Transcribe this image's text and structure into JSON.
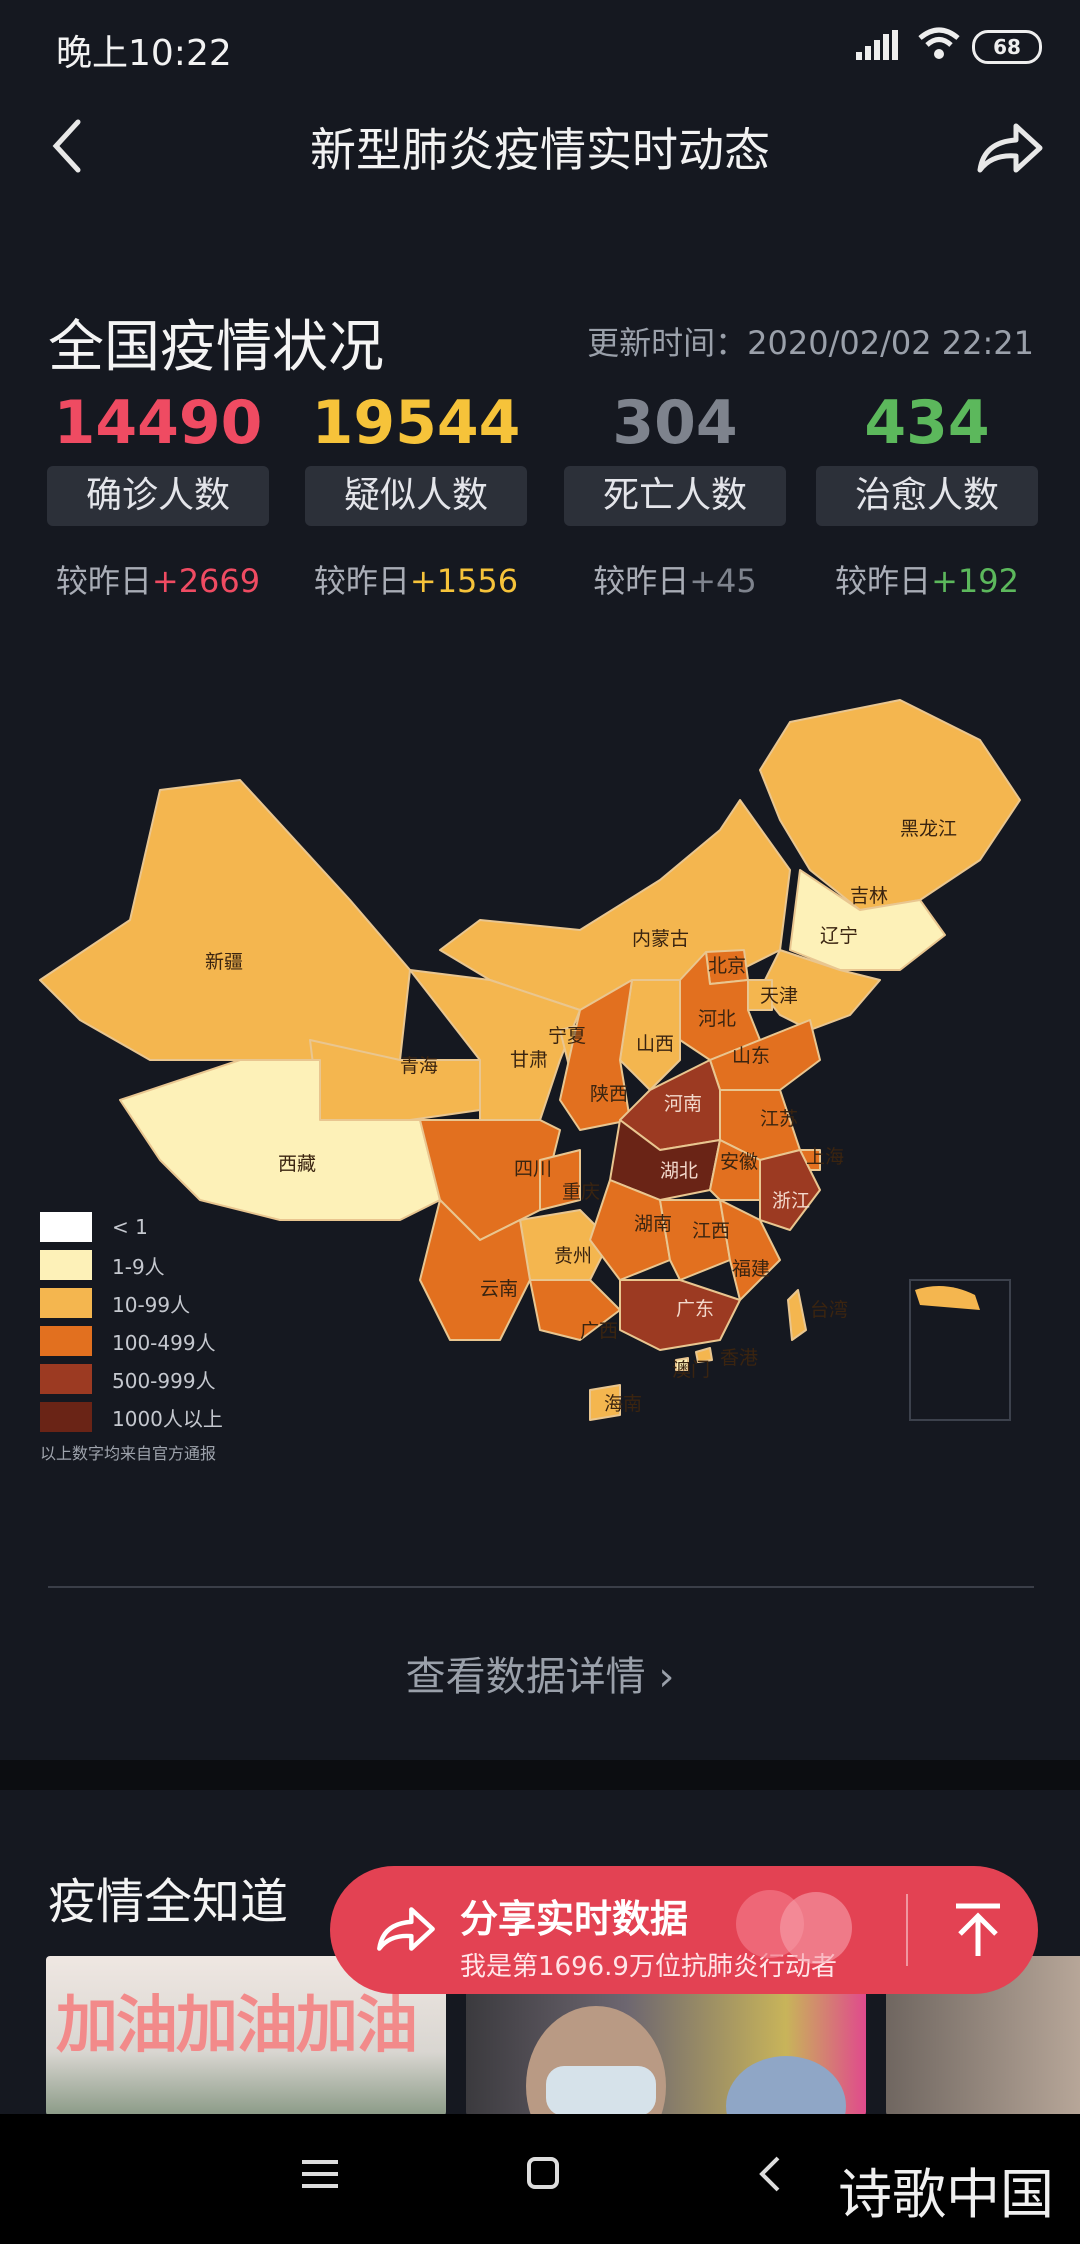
{
  "status_bar": {
    "time": "晚上10:22",
    "battery": "68"
  },
  "nav": {
    "title": "新型肺炎疫情实时动态"
  },
  "section": {
    "title": "全国疫情状况",
    "update_time": "更新时间：2020/02/02 22:21"
  },
  "stats": [
    {
      "number": "14490",
      "label": "确诊人数",
      "delta_prefix": "较昨日",
      "delta": "+2669",
      "color": "#ef4b62"
    },
    {
      "number": "19544",
      "label": "疑似人数",
      "delta_prefix": "较昨日",
      "delta": "+1556",
      "color": "#f6c33a"
    },
    {
      "number": "304",
      "label": "死亡人数",
      "delta_prefix": "较昨日",
      "delta": "+45",
      "color": "#7e838d"
    },
    {
      "number": "434",
      "label": "治愈人数",
      "delta_prefix": "较昨日",
      "delta": "+192",
      "color": "#5cb85c"
    }
  ],
  "map": {
    "provinces": [
      {
        "name": "黑龙江",
        "level": "10-99人"
      },
      {
        "name": "吉林",
        "level": "1-9人"
      },
      {
        "name": "辽宁",
        "level": "10-99人"
      },
      {
        "name": "内蒙古",
        "level": "10-99人"
      },
      {
        "name": "北京",
        "level": "100-499人"
      },
      {
        "name": "天津",
        "level": "10-99人"
      },
      {
        "name": "河北",
        "level": "100-499人"
      },
      {
        "name": "山西",
        "level": "10-99人"
      },
      {
        "name": "山东",
        "level": "100-499人"
      },
      {
        "name": "新疆",
        "level": "10-99人"
      },
      {
        "name": "青海",
        "level": "10-99人"
      },
      {
        "name": "甘肃",
        "level": "10-99人"
      },
      {
        "name": "宁夏",
        "level": "10-99人"
      },
      {
        "name": "陕西",
        "level": "100-499人"
      },
      {
        "name": "河南",
        "level": "500-999人"
      },
      {
        "name": "江苏",
        "level": "100-499人"
      },
      {
        "name": "上海",
        "level": "100-499人"
      },
      {
        "name": "西藏",
        "level": "1-9人"
      },
      {
        "name": "四川",
        "level": "100-499人"
      },
      {
        "name": "重庆",
        "level": "100-499人"
      },
      {
        "name": "湖北",
        "level": "1000人以上"
      },
      {
        "name": "安徽",
        "level": "100-499人"
      },
      {
        "name": "浙江",
        "level": "500-999人"
      },
      {
        "name": "贵州",
        "level": "10-99人"
      },
      {
        "name": "湖南",
        "level": "100-499人"
      },
      {
        "name": "江西",
        "level": "100-499人"
      },
      {
        "name": "福建",
        "level": "100-499人"
      },
      {
        "name": "云南",
        "level": "100-499人"
      },
      {
        "name": "广西",
        "level": "100-499人"
      },
      {
        "name": "广东",
        "level": "500-999人"
      },
      {
        "name": "台湾",
        "level": "10-99人"
      },
      {
        "name": "香港",
        "level": "10-99人"
      },
      {
        "name": "澳门",
        "level": "1-9人"
      },
      {
        "name": "海南",
        "level": "10-99人"
      }
    ],
    "legend": [
      {
        "label": "< 1",
        "color": "#ffffff"
      },
      {
        "label": "1-9人",
        "color": "#fdf1b8"
      },
      {
        "label": "10-99人",
        "color": "#f4b64f"
      },
      {
        "label": "100-499人",
        "color": "#e2701f"
      },
      {
        "label": "500-999人",
        "color": "#9c3a22"
      },
      {
        "label": "1000人以上",
        "color": "#6a2416"
      }
    ],
    "note": "以上数字均来自官方通报"
  },
  "details_link": "查看数据详情 ›",
  "knowledge": {
    "title": "疫情全知道",
    "card1_text": "加油加油加油"
  },
  "share_pill": {
    "title": "分享实时数据",
    "subtitle": "我是第1696.9万位抗肺炎行动者"
  },
  "watermark": "诗歌中国"
}
